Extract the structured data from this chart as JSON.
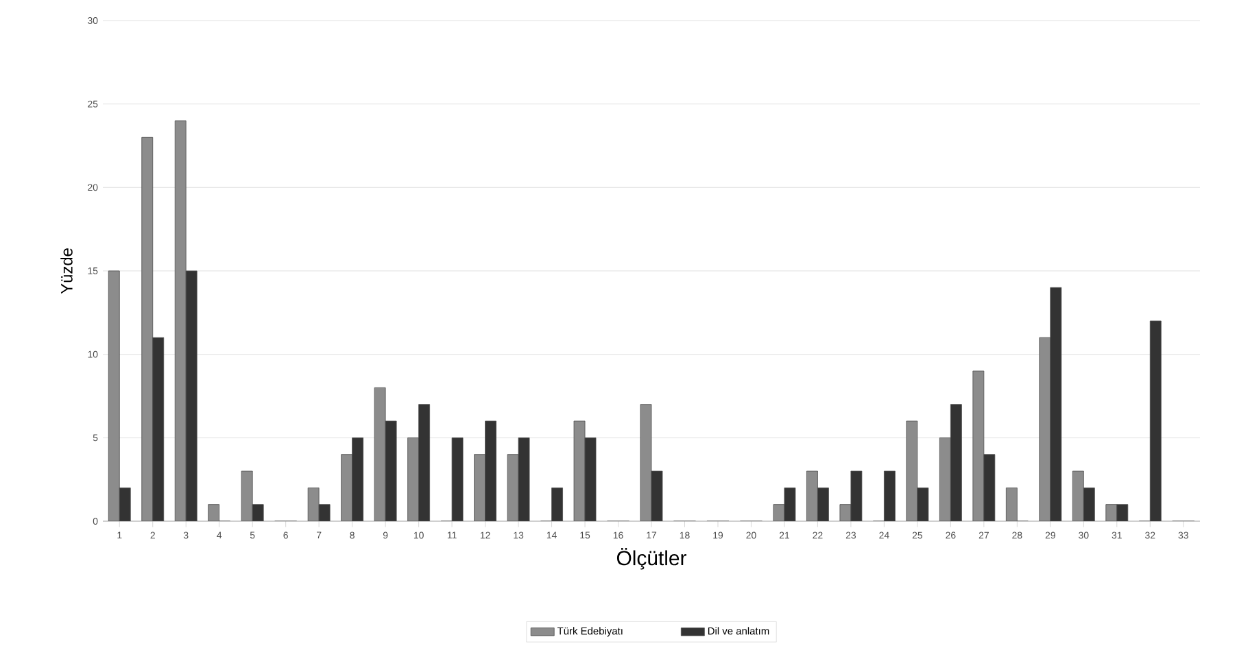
{
  "chart_data": {
    "type": "bar",
    "xlabel": "Ölçütler",
    "ylabel": "Yüzde",
    "categories": [
      "1",
      "2",
      "3",
      "4",
      "5",
      "6",
      "7",
      "8",
      "9",
      "10",
      "11",
      "12",
      "13",
      "14",
      "15",
      "16",
      "17",
      "18",
      "19",
      "20",
      "21",
      "22",
      "23",
      "24",
      "25",
      "26",
      "27",
      "28",
      "29",
      "30",
      "31",
      "32",
      "33"
    ],
    "series": [
      {
        "name": "Türk Edebiyatı",
        "color": "#8c8c8c",
        "values": [
          15,
          23,
          24,
          1,
          3,
          0,
          2,
          4,
          8,
          5,
          0,
          4,
          4,
          0,
          6,
          0,
          7,
          0,
          0,
          0,
          1,
          3,
          1,
          0,
          6,
          5,
          9,
          2,
          11,
          3,
          1,
          0,
          0
        ]
      },
      {
        "name": "Dil ve anlatım",
        "color": "#333333",
        "values": [
          2,
          11,
          15,
          0,
          1,
          0,
          1,
          5,
          6,
          7,
          5,
          6,
          5,
          2,
          5,
          0,
          3,
          0,
          0,
          0,
          2,
          2,
          3,
          3,
          2,
          7,
          4,
          0,
          14,
          2,
          1,
          12,
          0
        ]
      }
    ],
    "ylim": [
      0,
      30
    ],
    "yticks": [
      0,
      5,
      10,
      15,
      20,
      25,
      30
    ],
    "grid": "y",
    "legend": "bottom"
  }
}
